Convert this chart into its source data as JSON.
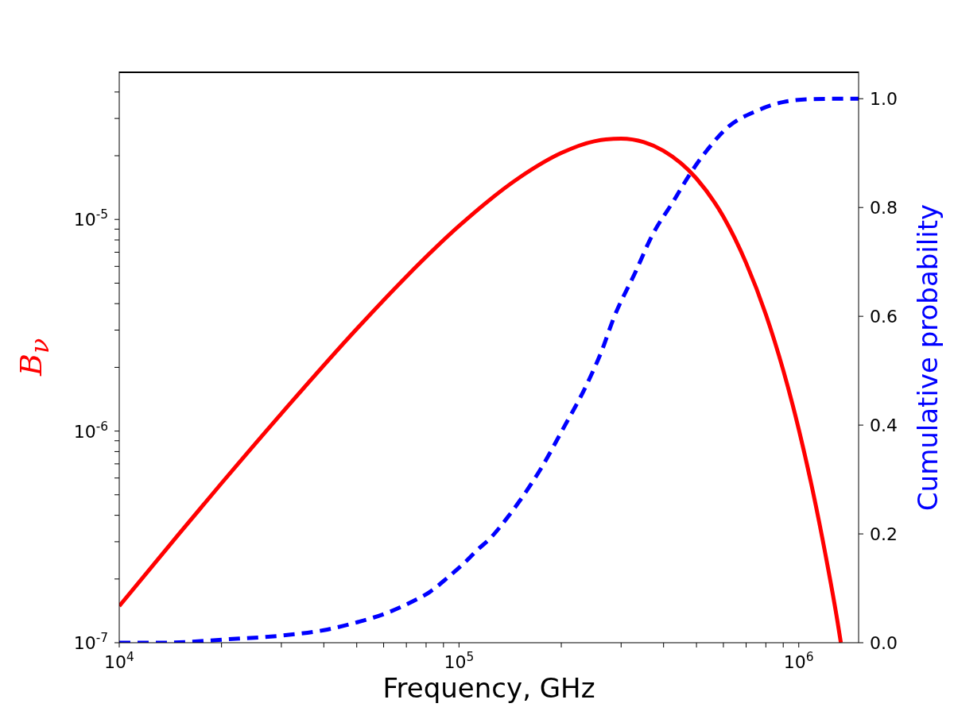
{
  "chart_data": {
    "type": "line",
    "xlabel": "Frequency, GHz",
    "ylabel": "B$_{ν}$",
    "y2label": "Cumulative probability",
    "log": "xy",
    "marker": "none",
    "xlim": [
      10000,
      1500000
    ],
    "xticks": [
      {
        "value": 10000,
        "label": "10$^{4}$"
      },
      {
        "value": 20000,
        "label": null
      },
      {
        "value": 30000,
        "label": null
      },
      {
        "value": 40000,
        "label": null
      },
      {
        "value": 50000,
        "label": null
      },
      {
        "value": 60000,
        "label": null
      },
      {
        "value": 70000,
        "label": null
      },
      {
        "value": 80000,
        "label": null
      },
      {
        "value": 90000,
        "label": null
      },
      {
        "value": 100000,
        "label": "10$^{5}$"
      },
      {
        "value": 200000,
        "label": null
      },
      {
        "value": 300000,
        "label": null
      },
      {
        "value": 400000,
        "label": null
      },
      {
        "value": 500000,
        "label": null
      },
      {
        "value": 600000,
        "label": null
      },
      {
        "value": 700000,
        "label": null
      },
      {
        "value": 800000,
        "label": null
      },
      {
        "value": 900000,
        "label": null
      },
      {
        "value": 1000000,
        "label": "10$^{6}$"
      }
    ],
    "ylim": [
      1e-07,
      5e-05
    ],
    "yticks": [
      {
        "value": 1e-07,
        "label": "10$^{-7}$"
      },
      {
        "value": 2e-07,
        "label": null
      },
      {
        "value": 3e-07,
        "label": null
      },
      {
        "value": 4e-07,
        "label": null
      },
      {
        "value": 5e-07,
        "label": null
      },
      {
        "value": 6e-07,
        "label": null
      },
      {
        "value": 7e-07,
        "label": null
      },
      {
        "value": 8e-07,
        "label": null
      },
      {
        "value": 9e-07,
        "label": null
      },
      {
        "value": 1e-06,
        "label": "10$^{-6}$"
      },
      {
        "value": 2e-06,
        "label": null
      },
      {
        "value": 3e-06,
        "label": null
      },
      {
        "value": 4e-06,
        "label": null
      },
      {
        "value": 5e-06,
        "label": null
      },
      {
        "value": 6e-06,
        "label": null
      },
      {
        "value": 7e-06,
        "label": null
      },
      {
        "value": 8e-06,
        "label": null
      },
      {
        "value": 9e-06,
        "label": null
      },
      {
        "value": 1e-05,
        "label": "10$^{-5}$"
      },
      {
        "value": 2e-05,
        "label": null
      },
      {
        "value": 3e-05,
        "label": null
      },
      {
        "value": 4e-05,
        "label": null
      }
    ],
    "y2lim": [
      0,
      1.05
    ],
    "y2ticks": [
      {
        "value": 0,
        "label": "0.0"
      },
      0.2,
      0.4,
      0.6,
      0.8,
      {
        "value": 1,
        "label": "1.0"
      }
    ],
    "series": [
      {
        "color": "#ff0000",
        "line_style": "solid",
        "axis": "y",
        "x": [
          10000,
          15000,
          20000,
          30000,
          50000,
          70000,
          100000,
          150000,
          200000,
          250000,
          300000,
          350000,
          400000,
          500000,
          600000,
          700000,
          800000,
          900000,
          1000000,
          1100000,
          1200000,
          1300000,
          1330000
        ],
        "values": [
          1.49e-07,
          3.27e-07,
          5.67e-07,
          1.21e-06,
          3.04e-06,
          5.37e-06,
          9.31e-06,
          1.57e-05,
          2.06e-05,
          2.34e-05,
          2.41e-05,
          2.32e-05,
          2.11e-05,
          1.56e-05,
          1.03e-05,
          6.22e-06,
          3.56e-06,
          1.94e-06,
          1.02e-06,
          5.2e-07,
          2.58e-07,
          1.26e-07,
          1e-07
        ]
      },
      {
        "color": "#0000ff",
        "line_style": "dashed",
        "axis": "y2",
        "x": [
          10000,
          13600,
          20500,
          29900,
          40000,
          50400,
          60300,
          73600,
          81900,
          92700,
          103000,
          113000,
          124000,
          138000,
          151000,
          173000,
          204000,
          237000,
          264000,
          285000,
          331000,
          369000,
          429000,
          480000,
          535000,
          622000,
          748000,
          902000,
          1080000,
          1410000,
          1500000
        ],
        "values": [
          0,
          0,
          0.006,
          0.013,
          0.023,
          0.038,
          0.053,
          0.077,
          0.093,
          0.12,
          0.145,
          0.17,
          0.193,
          0.228,
          0.261,
          0.317,
          0.397,
          0.473,
          0.539,
          0.596,
          0.682,
          0.747,
          0.813,
          0.863,
          0.904,
          0.949,
          0.977,
          0.994,
          0.999,
          1,
          1
        ]
      }
    ]
  }
}
